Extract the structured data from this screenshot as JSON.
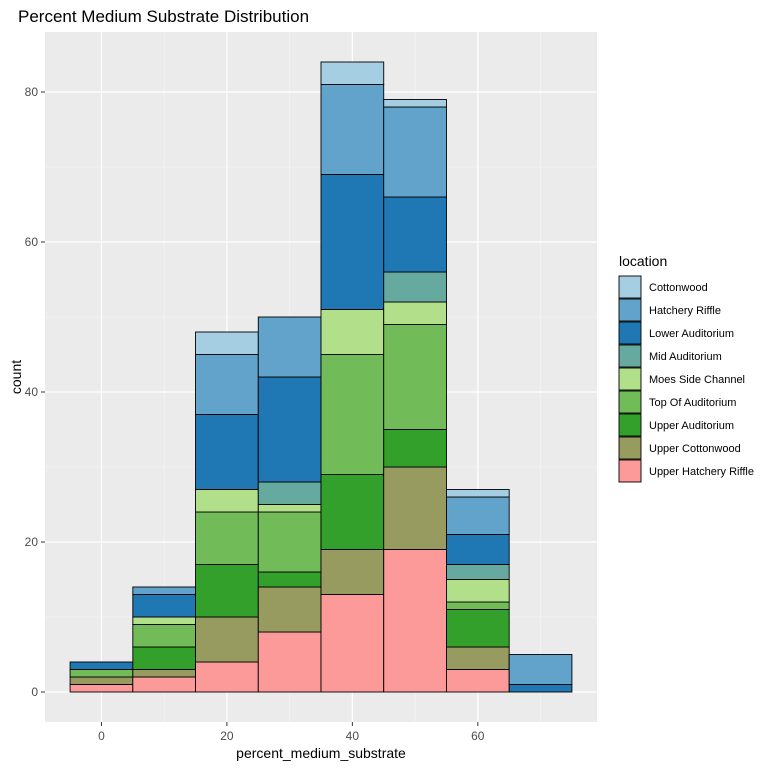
{
  "chart_data": {
    "type": "bar",
    "stacked": true,
    "title": "Percent Medium Substrate Distribution",
    "xlabel": "percent_medium_substrate",
    "ylabel": "count",
    "x_bins": [
      0,
      10,
      20,
      30,
      40,
      50,
      60,
      70
    ],
    "bin_width": 10,
    "xlim": [
      -9,
      79
    ],
    "ylim": [
      -4,
      88
    ],
    "x_ticks": [
      0,
      20,
      40,
      60
    ],
    "y_ticks": [
      0,
      20,
      40,
      60,
      80
    ],
    "grid": true,
    "legend": {
      "title": "location",
      "position": "right"
    },
    "series": [
      {
        "name": "Cottonwood",
        "color": "#a6cee3",
        "values": [
          0,
          0,
          3,
          0,
          3,
          1,
          1,
          0
        ]
      },
      {
        "name": "Hatchery Riffle",
        "color": "#62a3cb",
        "values": [
          0,
          1,
          8,
          8,
          12,
          12,
          5,
          4
        ]
      },
      {
        "name": "Lower Auditorium",
        "color": "#1f78b4",
        "values": [
          1,
          3,
          10,
          14,
          18,
          10,
          4,
          1
        ]
      },
      {
        "name": "Mid Auditorium",
        "color": "#66a99f",
        "values": [
          0,
          0,
          0,
          3,
          0,
          4,
          2,
          0
        ]
      },
      {
        "name": "Moes Side Channel",
        "color": "#b2df8a",
        "values": [
          0,
          1,
          3,
          1,
          6,
          3,
          3,
          0
        ]
      },
      {
        "name": "Top Of Auditorium",
        "color": "#72bb59",
        "values": [
          1,
          3,
          7,
          8,
          16,
          14,
          1,
          0
        ]
      },
      {
        "name": "Upper Auditorium",
        "color": "#33a02c",
        "values": [
          0,
          3,
          7,
          2,
          10,
          5,
          5,
          0
        ]
      },
      {
        "name": "Upper Cottonwood",
        "color": "#979b60",
        "values": [
          1,
          1,
          6,
          6,
          6,
          11,
          3,
          0
        ]
      },
      {
        "name": "Upper Hatchery Riffle",
        "color": "#fb9a99",
        "values": [
          1,
          2,
          4,
          8,
          13,
          19,
          3,
          0
        ]
      }
    ]
  }
}
